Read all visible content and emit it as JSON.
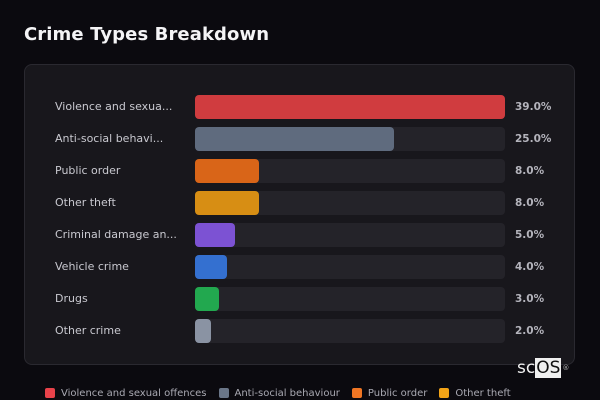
{
  "title": "Crime Types Breakdown",
  "chart_data": {
    "type": "bar",
    "orientation": "horizontal",
    "title": "Crime Types Breakdown",
    "categories": [
      "Violence and sexual offences",
      "Anti-social behaviour",
      "Public order",
      "Other theft",
      "Criminal damage and arson",
      "Vehicle crime",
      "Drugs",
      "Other crime"
    ],
    "display_labels": [
      "Violence and sexua...",
      "Anti-social behavi...",
      "Public order",
      "Other theft",
      "Criminal damage an...",
      "Vehicle crime",
      "Drugs",
      "Other crime"
    ],
    "values": [
      39.0,
      25.0,
      8.0,
      8.0,
      5.0,
      4.0,
      3.0,
      2.0
    ],
    "value_labels": [
      "39.0%",
      "25.0%",
      "8.0%",
      "8.0%",
      "5.0%",
      "4.0%",
      "3.0%",
      "2.0%"
    ],
    "colors": [
      "#d03c3f",
      "#5f6b7e",
      "#d96518",
      "#d78e14",
      "#7c52d3",
      "#3470d0",
      "#22a84f",
      "#8a93a3"
    ],
    "xlabel": "",
    "ylabel": "",
    "unit": "%",
    "scale": "relative to max",
    "grid": false,
    "legend_position": "bottom"
  },
  "rows": [
    {
      "label": "Violence and sexua...",
      "pct": "39.0%",
      "width": 100.0,
      "color": "#d03c3f"
    },
    {
      "label": "Anti-social behavi...",
      "pct": "25.0%",
      "width": 64.1,
      "color": "#5f6b7e"
    },
    {
      "label": "Public order",
      "pct": "8.0%",
      "width": 20.5,
      "color": "#d96518"
    },
    {
      "label": "Other theft",
      "pct": "8.0%",
      "width": 20.5,
      "color": "#d78e14"
    },
    {
      "label": "Criminal damage an...",
      "pct": "5.0%",
      "width": 12.8,
      "color": "#7c52d3"
    },
    {
      "label": "Vehicle crime",
      "pct": "4.0%",
      "width": 10.3,
      "color": "#3470d0"
    },
    {
      "label": "Drugs",
      "pct": "3.0%",
      "width": 7.7,
      "color": "#22a84f"
    },
    {
      "label": "Other crime",
      "pct": "2.0%",
      "width": 5.1,
      "color": "#8a93a3"
    }
  ],
  "legend": [
    {
      "label": "Violence and sexual offences",
      "color": "#e8424a"
    },
    {
      "label": "Anti-social behaviour",
      "color": "#6a7688"
    },
    {
      "label": "Public order",
      "color": "#f07624"
    },
    {
      "label": "Other theft",
      "color": "#f3a417"
    }
  ],
  "logo": {
    "prefix": "sc",
    "boxed": "OS",
    "mark": "®"
  }
}
